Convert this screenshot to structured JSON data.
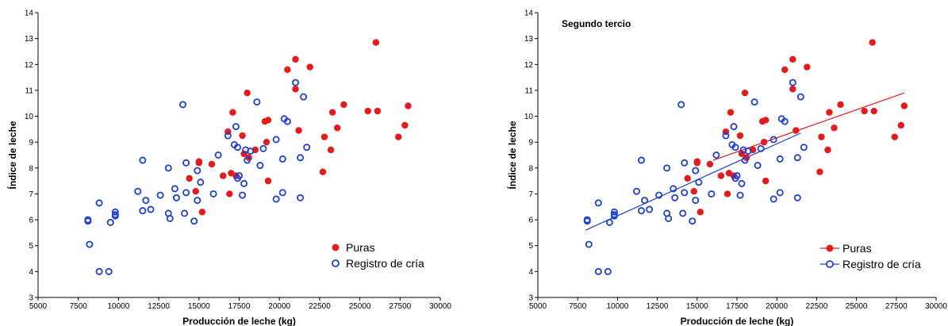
{
  "chart_data": [
    {
      "type": "scatter",
      "title": "",
      "xlabel": "Producción de leche (kg)",
      "ylabel": "Índice de leche",
      "xlim": [
        5000,
        30000
      ],
      "ylim": [
        3,
        14
      ],
      "xticks": [
        "5000",
        "7500",
        "10000",
        "12500",
        "15000",
        "17500",
        "20000",
        "22500",
        "25000",
        "27500",
        "30000"
      ],
      "yticks": [
        "3",
        "4",
        "5",
        "6",
        "7",
        "8",
        "9",
        "10",
        "11",
        "12",
        "13",
        "14"
      ],
      "grid": false,
      "legend_position": "bottom-right",
      "trendlines": false,
      "series": [
        {
          "name": "Puras",
          "color": "#e41a1c",
          "marker": "filled-circle",
          "points": [
            [
              26000,
              12.85
            ],
            [
              21000,
              12.2
            ],
            [
              20500,
              11.8
            ],
            [
              21900,
              11.9
            ],
            [
              18000,
              10.9
            ],
            [
              21000,
              11.05
            ],
            [
              24000,
              10.45
            ],
            [
              25500,
              10.2
            ],
            [
              26100,
              10.2
            ],
            [
              28000,
              10.4
            ],
            [
              17100,
              10.15
            ],
            [
              23300,
              10.15
            ],
            [
              19100,
              9.8
            ],
            [
              19300,
              9.85
            ],
            [
              27800,
              9.65
            ],
            [
              23600,
              9.55
            ],
            [
              21200,
              9.45
            ],
            [
              16800,
              9.4
            ],
            [
              27400,
              9.2
            ],
            [
              17700,
              9.25
            ],
            [
              22800,
              9.2
            ],
            [
              19200,
              9.0
            ],
            [
              18500,
              8.7
            ],
            [
              23200,
              8.7
            ],
            [
              17800,
              8.55
            ],
            [
              18100,
              8.4
            ],
            [
              15000,
              8.25
            ],
            [
              15000,
              8.2
            ],
            [
              15800,
              8.15
            ],
            [
              17000,
              7.8
            ],
            [
              22700,
              7.85
            ],
            [
              16500,
              7.7
            ],
            [
              17300,
              7.7
            ],
            [
              19300,
              7.5
            ],
            [
              14400,
              7.6
            ],
            [
              14800,
              7.1
            ],
            [
              16900,
              7.0
            ],
            [
              15200,
              6.3
            ]
          ]
        },
        {
          "name": "Registro de cría",
          "color": "#1f3fd6",
          "marker": "open-circle",
          "points": [
            [
              21000,
              11.3
            ],
            [
              14000,
              10.45
            ],
            [
              18600,
              10.55
            ],
            [
              21500,
              10.75
            ],
            [
              20300,
              9.9
            ],
            [
              20500,
              9.8
            ],
            [
              17300,
              9.6
            ],
            [
              16800,
              9.25
            ],
            [
              19800,
              9.1
            ],
            [
              17200,
              8.9
            ],
            [
              17400,
              8.8
            ],
            [
              17900,
              8.7
            ],
            [
              18200,
              8.65
            ],
            [
              19000,
              8.75
            ],
            [
              21700,
              8.8
            ],
            [
              18000,
              8.3
            ],
            [
              16200,
              8.5
            ],
            [
              11500,
              8.3
            ],
            [
              14200,
              8.2
            ],
            [
              20200,
              8.35
            ],
            [
              21300,
              8.4
            ],
            [
              13100,
              8.0
            ],
            [
              14900,
              7.9
            ],
            [
              18800,
              8.1
            ],
            [
              17500,
              7.7
            ],
            [
              17400,
              7.6
            ],
            [
              15100,
              7.45
            ],
            [
              17800,
              7.4
            ],
            [
              13500,
              7.2
            ],
            [
              11200,
              7.1
            ],
            [
              12600,
              6.95
            ],
            [
              14200,
              7.05
            ],
            [
              15900,
              7.0
            ],
            [
              17700,
              6.95
            ],
            [
              20200,
              7.05
            ],
            [
              11700,
              6.75
            ],
            [
              13600,
              6.85
            ],
            [
              14900,
              6.75
            ],
            [
              19800,
              6.8
            ],
            [
              21300,
              6.85
            ],
            [
              11500,
              6.35
            ],
            [
              12000,
              6.4
            ],
            [
              13100,
              6.25
            ],
            [
              14100,
              6.25
            ],
            [
              9800,
              6.3
            ],
            [
              9800,
              6.2
            ],
            [
              9800,
              6.15
            ],
            [
              13200,
              6.05
            ],
            [
              14700,
              5.95
            ],
            [
              8100,
              6.0
            ],
            [
              8100,
              5.95
            ],
            [
              9500,
              5.9
            ],
            [
              8800,
              6.65
            ],
            [
              8200,
              5.05
            ],
            [
              8800,
              4.0
            ],
            [
              9400,
              4.0
            ]
          ]
        }
      ]
    },
    {
      "type": "scatter",
      "title": "Segundo tercio",
      "xlabel": "Producción de leche (kg)",
      "ylabel": "Índice de leche",
      "xlim": [
        5000,
        30000
      ],
      "ylim": [
        3,
        14
      ],
      "xticks": [
        "5000",
        "7500",
        "10000",
        "12500",
        "15000",
        "17500",
        "20000",
        "22500",
        "25000",
        "27500",
        "30000"
      ],
      "yticks": [
        "3",
        "4",
        "5",
        "6",
        "7",
        "8",
        "9",
        "10",
        "11",
        "12",
        "13",
        "14"
      ],
      "grid": false,
      "legend_position": "bottom-right",
      "trendlines": true,
      "series": [
        {
          "name": "Puras",
          "color": "#e41a1c",
          "marker": "filled-circle",
          "trendline": [
            [
              16000,
              8.3
            ],
            [
              28000,
              10.9
            ]
          ],
          "points": [
            [
              26000,
              12.85
            ],
            [
              21000,
              12.2
            ],
            [
              20500,
              11.8
            ],
            [
              21900,
              11.9
            ],
            [
              18000,
              10.9
            ],
            [
              21000,
              11.05
            ],
            [
              24000,
              10.45
            ],
            [
              25500,
              10.2
            ],
            [
              26100,
              10.2
            ],
            [
              28000,
              10.4
            ],
            [
              17100,
              10.15
            ],
            [
              23300,
              10.15
            ],
            [
              19100,
              9.8
            ],
            [
              19300,
              9.85
            ],
            [
              27800,
              9.65
            ],
            [
              23600,
              9.55
            ],
            [
              21200,
              9.45
            ],
            [
              16800,
              9.4
            ],
            [
              27400,
              9.2
            ],
            [
              17700,
              9.25
            ],
            [
              22800,
              9.2
            ],
            [
              19200,
              9.0
            ],
            [
              18500,
              8.7
            ],
            [
              23200,
              8.7
            ],
            [
              17800,
              8.55
            ],
            [
              18100,
              8.4
            ],
            [
              15000,
              8.25
            ],
            [
              15000,
              8.2
            ],
            [
              15800,
              8.15
            ],
            [
              17000,
              7.8
            ],
            [
              22700,
              7.85
            ],
            [
              16500,
              7.7
            ],
            [
              17300,
              7.7
            ],
            [
              19300,
              7.5
            ],
            [
              14400,
              7.6
            ],
            [
              14800,
              7.1
            ],
            [
              16900,
              7.0
            ],
            [
              15200,
              6.3
            ]
          ]
        },
        {
          "name": "Registro de cría",
          "color": "#1f3fd6",
          "marker": "open-circle",
          "trendline": [
            [
              8000,
              5.6
            ],
            [
              21500,
              9.35
            ]
          ],
          "points": [
            [
              21000,
              11.3
            ],
            [
              14000,
              10.45
            ],
            [
              18600,
              10.55
            ],
            [
              21500,
              10.75
            ],
            [
              20300,
              9.9
            ],
            [
              20500,
              9.8
            ],
            [
              17300,
              9.6
            ],
            [
              16800,
              9.25
            ],
            [
              19800,
              9.1
            ],
            [
              17200,
              8.9
            ],
            [
              17400,
              8.8
            ],
            [
              17900,
              8.7
            ],
            [
              18200,
              8.65
            ],
            [
              19000,
              8.75
            ],
            [
              21700,
              8.8
            ],
            [
              18000,
              8.3
            ],
            [
              16200,
              8.5
            ],
            [
              11500,
              8.3
            ],
            [
              14200,
              8.2
            ],
            [
              20200,
              8.35
            ],
            [
              21300,
              8.4
            ],
            [
              13100,
              8.0
            ],
            [
              14900,
              7.9
            ],
            [
              18800,
              8.1
            ],
            [
              17500,
              7.7
            ],
            [
              17400,
              7.6
            ],
            [
              15100,
              7.45
            ],
            [
              17800,
              7.4
            ],
            [
              13500,
              7.2
            ],
            [
              11200,
              7.1
            ],
            [
              12600,
              6.95
            ],
            [
              14200,
              7.05
            ],
            [
              15900,
              7.0
            ],
            [
              17700,
              6.95
            ],
            [
              20200,
              7.05
            ],
            [
              11700,
              6.75
            ],
            [
              13600,
              6.85
            ],
            [
              14900,
              6.75
            ],
            [
              19800,
              6.8
            ],
            [
              21300,
              6.85
            ],
            [
              11500,
              6.35
            ],
            [
              12000,
              6.4
            ],
            [
              13100,
              6.25
            ],
            [
              14100,
              6.25
            ],
            [
              9800,
              6.3
            ],
            [
              9800,
              6.2
            ],
            [
              9800,
              6.15
            ],
            [
              13200,
              6.05
            ],
            [
              14700,
              5.95
            ],
            [
              8100,
              6.0
            ],
            [
              8100,
              5.95
            ],
            [
              9500,
              5.9
            ],
            [
              8800,
              6.65
            ],
            [
              8200,
              5.05
            ],
            [
              8800,
              4.0
            ],
            [
              9400,
              4.0
            ]
          ]
        }
      ]
    }
  ]
}
